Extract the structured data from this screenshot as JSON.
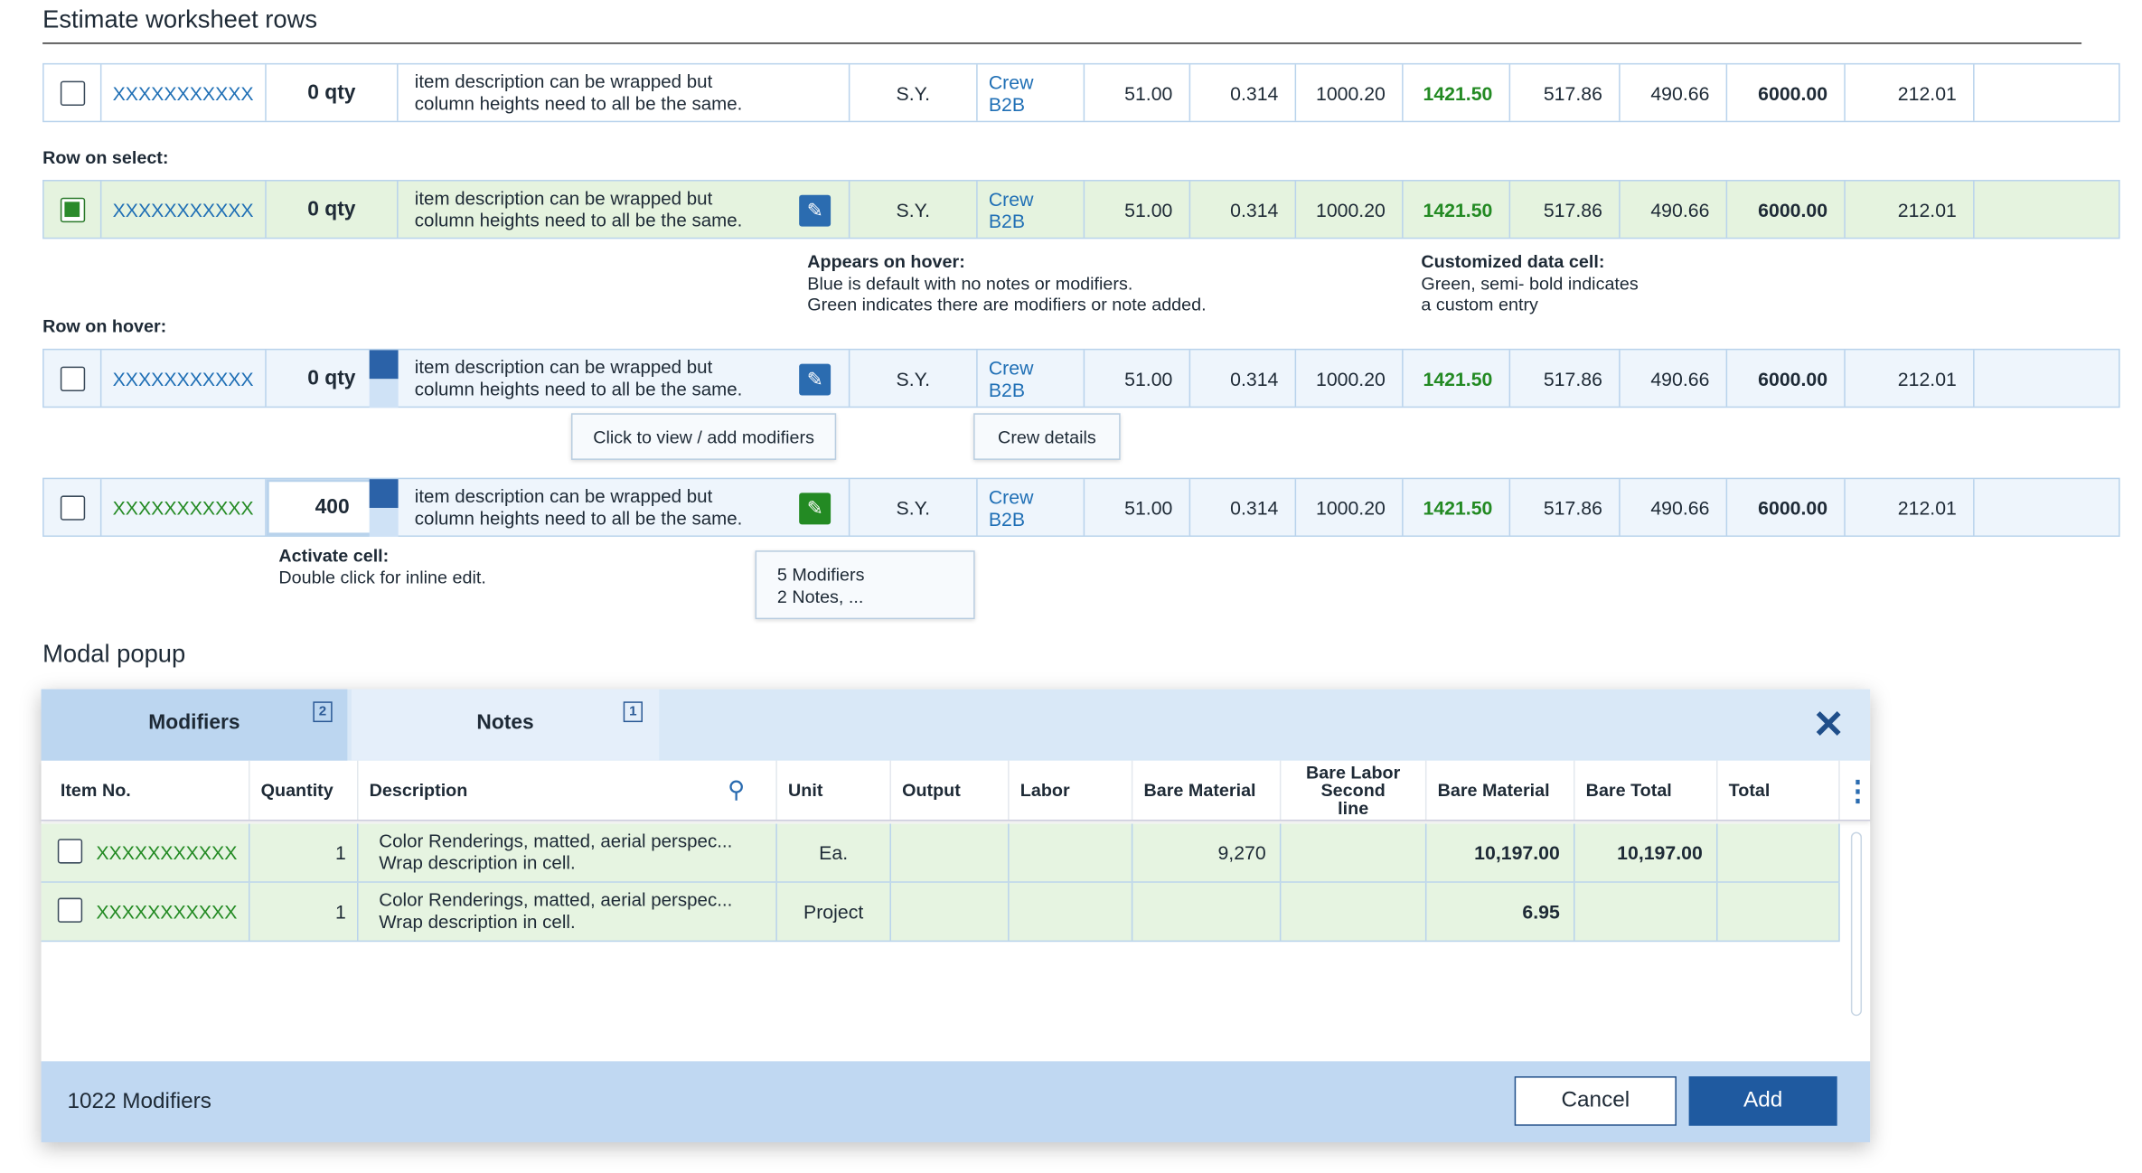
{
  "worksheet": {
    "title": "Estimate worksheet rows",
    "rows": [
      {
        "cells": [
          "XXXXXXXXXXX",
          "0 qty",
          "item description can be wrapped but column heights need to all be the same.",
          "S.Y.",
          "Crew B2B",
          "51.00",
          "0.314",
          "1000.20",
          "1421.50",
          "517.86",
          "490.66",
          "6000.00",
          "212.01"
        ]
      },
      {
        "label": "Row on select:",
        "cells": [
          "XXXXXXXXXXX",
          "0 qty",
          "item description can be wrapped but column heights need to all be the same.",
          "S.Y.",
          "Crew B2B",
          "51.00",
          "0.314",
          "1000.20",
          "1421.50",
          "517.86",
          "490.66",
          "6000.00",
          "212.01"
        ]
      },
      {
        "label": "Row on hover:",
        "cells": [
          "XXXXXXXXXXX",
          "0 qty",
          "item description can be wrapped but column heights need to all be the same.",
          "S.Y.",
          "Crew B2B",
          "51.00",
          "0.314",
          "1000.20",
          "1421.50",
          "517.86",
          "490.66",
          "6000.00",
          "212.01"
        ]
      },
      {
        "cells": [
          "XXXXXXXXXXX",
          "400",
          "item description can be wrapped but column heights need to all be the same.",
          "S.Y.",
          "Crew B2B",
          "51.00",
          "0.314",
          "1000.20",
          "1421.50",
          "517.86",
          "490.66",
          "6000.00",
          "212.01"
        ]
      }
    ],
    "notes": {
      "hover": {
        "title": "Appears on hover:",
        "lines": [
          "Blue is default with no notes or modifiers.",
          "Green indicates there are modifiers or note added."
        ]
      },
      "custom": {
        "title": "Customized data cell:",
        "lines": [
          "Green, semi- bold indicates",
          "a custom entry"
        ]
      },
      "activate": {
        "title": "Activate cell:",
        "lines": [
          "Double click for inline edit."
        ]
      }
    },
    "tooltips": {
      "modifiers": "Click to view / add modifiers",
      "crew": "Crew details",
      "summary": [
        "5 Modifiers",
        "2 Notes, ..."
      ]
    }
  },
  "modal": {
    "title": "Modal popup",
    "tabs": [
      {
        "label": "Modifiers",
        "badge": "2"
      },
      {
        "label": "Notes",
        "badge": "1"
      }
    ],
    "columns": [
      "Item No.",
      "Quantity",
      "Description",
      "Unit",
      "Output",
      "Labor",
      "Bare Material",
      "Bare Labor Second line",
      "Bare Material",
      "Bare Total",
      "Total"
    ],
    "rows": [
      {
        "item": "XXXXXXXXXXX",
        "qty": "1",
        "desc": [
          "Color Renderings, matted, aerial perspec...",
          "Wrap description in cell."
        ],
        "unit": "Ea.",
        "bare_material": "9,270",
        "bare_material_2": "10,197.00",
        "bare_total": "10,197.00"
      },
      {
        "item": "XXXXXXXXXXX",
        "qty": "1",
        "desc": [
          "Color Renderings, matted, aerial perspec...",
          "Wrap description in cell."
        ],
        "unit": "Project",
        "bare_material_2": "6.95"
      }
    ],
    "footer": {
      "count": "1022 Modifiers",
      "cancel": "Cancel",
      "add": "Add"
    }
  }
}
